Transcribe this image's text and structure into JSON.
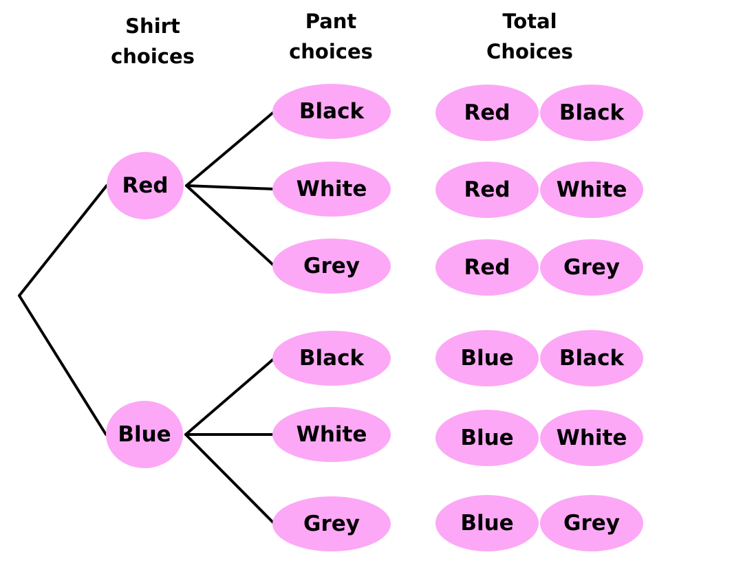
{
  "headers": {
    "shirt": [
      "Shirt",
      "choices"
    ],
    "pant": [
      "Pant",
      "choices"
    ],
    "total": [
      "Total",
      "Choices"
    ]
  },
  "colors": {
    "node_fill": "#fca8f6",
    "line": "#000000"
  },
  "shirts": [
    {
      "label": "Red",
      "pants": [
        "Black",
        "White",
        "Grey"
      ]
    },
    {
      "label": "Blue",
      "pants": [
        "Black",
        "White",
        "Grey"
      ]
    }
  ],
  "totals": [
    [
      "Red",
      "Black"
    ],
    [
      "Red",
      "White"
    ],
    [
      "Red",
      "Grey"
    ],
    [
      "Blue",
      "Black"
    ],
    [
      "Blue",
      "White"
    ],
    [
      "Blue",
      "Grey"
    ]
  ]
}
